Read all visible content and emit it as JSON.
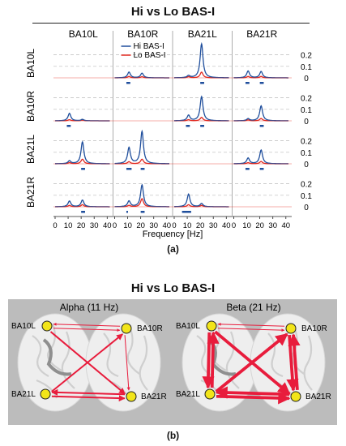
{
  "panel_a": {
    "title": "Hi vs Lo BAS-I",
    "caption": "(a)",
    "col_labels": [
      "BA10L",
      "BA10R",
      "BA21L",
      "BA21R"
    ],
    "row_labels": [
      "BA10L",
      "BA10R",
      "BA21L",
      "BA21R"
    ],
    "legend": [
      {
        "label": "Hi BAS-I",
        "color": "#1f4e9c"
      },
      {
        "label": "Lo BAS-I",
        "color": "#e0281f"
      }
    ]
  },
  "panel_b": {
    "title": "Hi vs Lo BAS-I",
    "caption": "(b)",
    "background_color": "#bcbcbc",
    "node_color": "#f2e51a",
    "arrow_color": "#e81c3c",
    "maps": [
      {
        "title": "Alpha (11 Hz)",
        "nodes": [
          "BA10L",
          "BA10R",
          "BA21L",
          "BA21R"
        ],
        "arrows": [
          {
            "from": "BA10L",
            "to": "BA10R",
            "strength": "thin"
          },
          {
            "from": "BA10R",
            "to": "BA10L",
            "strength": "thin"
          },
          {
            "from": "BA10L",
            "to": "BA21R",
            "strength": "medium"
          },
          {
            "from": "BA21L",
            "to": "BA10R",
            "strength": "medium"
          },
          {
            "from": "BA10R",
            "to": "BA21R",
            "strength": "thin"
          },
          {
            "from": "BA21L",
            "to": "BA21R",
            "strength": "medium"
          },
          {
            "from": "BA21R",
            "to": "BA21L",
            "strength": "medium"
          }
        ]
      },
      {
        "title": "Beta (21 Hz)",
        "nodes": [
          "BA10L",
          "BA10R",
          "BA21L",
          "BA21R"
        ],
        "arrows": [
          {
            "from": "BA10L",
            "to": "BA10R",
            "strength": "thin"
          },
          {
            "from": "BA10R",
            "to": "BA10L",
            "strength": "thin"
          },
          {
            "from": "BA10L",
            "to": "BA21L",
            "strength": "thick"
          },
          {
            "from": "BA21L",
            "to": "BA10L",
            "strength": "thick"
          },
          {
            "from": "BA10R",
            "to": "BA21R",
            "strength": "thick"
          },
          {
            "from": "BA21R",
            "to": "BA10R",
            "strength": "thick"
          },
          {
            "from": "BA10L",
            "to": "BA21R",
            "strength": "thick"
          },
          {
            "from": "BA21L",
            "to": "BA10R",
            "strength": "thick"
          },
          {
            "from": "BA21L",
            "to": "BA21R",
            "strength": "thick"
          },
          {
            "from": "BA21R",
            "to": "BA21L",
            "strength": "thick"
          }
        ]
      }
    ]
  },
  "chart_data": {
    "type": "line",
    "title": "Hi vs Lo BAS-I",
    "xlabel": "Frequency [Hz]",
    "xlim": [
      0,
      42
    ],
    "x_ticks": [
      0,
      10,
      20,
      30,
      40
    ],
    "x_tick_labels": [
      "0",
      "10",
      "20",
      "30",
      "40"
    ],
    "ylim": [
      0,
      0.3
    ],
    "y_ticks": [
      0,
      0.1,
      0.2
    ],
    "y_tick_labels": [
      "0",
      "0.1",
      "0.2"
    ],
    "grid": "dashed at 0.1 and 0.2",
    "legend_position": "top-right of row 1 / column 2",
    "legend": [
      "Hi BAS-I",
      "Lo BAS-I"
    ],
    "row_labels": [
      "BA10L",
      "BA10R",
      "BA21L",
      "BA21R"
    ],
    "col_labels": [
      "BA10L",
      "BA10R",
      "BA21L",
      "BA21R"
    ],
    "series_colors": {
      "Hi BAS-I": "#1f4e9c",
      "Lo BAS-I": "#e0281f"
    },
    "cells": [
      {
        "row": "BA10L",
        "col": "BA10L",
        "diagonal": true
      },
      {
        "row": "BA10L",
        "col": "BA10R",
        "hi": [
          [
            11,
            0.05
          ],
          [
            21,
            0.04
          ]
        ],
        "lo": [
          [
            11,
            0.012
          ],
          [
            21,
            0.01
          ]
        ],
        "bars": [
          [
            9,
            12
          ]
        ]
      },
      {
        "row": "BA10L",
        "col": "BA21L",
        "hi": [
          [
            11,
            0.018
          ],
          [
            21,
            0.295
          ]
        ],
        "lo": [
          [
            11,
            0.01
          ],
          [
            21,
            0.05
          ]
        ],
        "bars": [
          [
            20,
            23
          ]
        ]
      },
      {
        "row": "BA10L",
        "col": "BA21R",
        "hi": [
          [
            11,
            0.06
          ],
          [
            21,
            0.055
          ]
        ],
        "lo": [
          [
            11,
            0.012
          ],
          [
            21,
            0.012
          ]
        ],
        "bars": [
          [
            9,
            12
          ],
          [
            20,
            23
          ]
        ]
      },
      {
        "row": "BA10R",
        "col": "BA10L",
        "hi": [
          [
            11,
            0.065
          ],
          [
            21,
            0.012
          ]
        ],
        "lo": [
          [
            11,
            0.01
          ],
          [
            21,
            0.006
          ]
        ],
        "bars": [
          [
            9,
            12
          ]
        ]
      },
      {
        "row": "BA10R",
        "col": "BA10R",
        "diagonal": true
      },
      {
        "row": "BA10R",
        "col": "BA21L",
        "hi": [
          [
            11,
            0.048
          ],
          [
            21,
            0.21
          ]
        ],
        "lo": [
          [
            11,
            0.01
          ],
          [
            21,
            0.03
          ]
        ],
        "bars": [
          [
            9,
            12
          ],
          [
            20,
            23
          ]
        ]
      },
      {
        "row": "BA10R",
        "col": "BA21R",
        "hi": [
          [
            11,
            0.018
          ],
          [
            21,
            0.13
          ]
        ],
        "lo": [
          [
            11,
            0.008
          ],
          [
            21,
            0.02
          ]
        ],
        "bars": [
          [
            20,
            23
          ]
        ]
      },
      {
        "row": "BA21L",
        "col": "BA10L",
        "hi": [
          [
            11,
            0.025
          ],
          [
            21,
            0.19
          ]
        ],
        "lo": [
          [
            11,
            0.01
          ],
          [
            21,
            0.04
          ]
        ],
        "bars": [
          [
            20,
            23
          ]
        ]
      },
      {
        "row": "BA21L",
        "col": "BA10R",
        "hi": [
          [
            11,
            0.14
          ],
          [
            21,
            0.28
          ]
        ],
        "lo": [
          [
            11,
            0.018
          ],
          [
            21,
            0.04
          ]
        ],
        "bars": [
          [
            9,
            13
          ],
          [
            20,
            23
          ]
        ]
      },
      {
        "row": "BA21L",
        "col": "BA21L",
        "diagonal": true
      },
      {
        "row": "BA21L",
        "col": "BA21R",
        "hi": [
          [
            11,
            0.05
          ],
          [
            21,
            0.12
          ]
        ],
        "lo": [
          [
            11,
            0.01
          ],
          [
            21,
            0.02
          ]
        ],
        "bars": [
          [
            9,
            12
          ],
          [
            20,
            23
          ]
        ]
      },
      {
        "row": "BA21R",
        "col": "BA10L",
        "hi": [
          [
            11,
            0.05
          ],
          [
            21,
            0.058
          ]
        ],
        "lo": [
          [
            11,
            0.012
          ],
          [
            21,
            0.018
          ]
        ],
        "bars": [
          [
            20,
            23
          ]
        ]
      },
      {
        "row": "BA21R",
        "col": "BA10R",
        "hi": [
          [
            11,
            0.05
          ],
          [
            21,
            0.19
          ]
        ],
        "lo": [
          [
            11,
            0.012
          ],
          [
            21,
            0.07
          ]
        ],
        "bars": [
          [
            9,
            10
          ],
          [
            20,
            23
          ]
        ]
      },
      {
        "row": "BA21R",
        "col": "BA21L",
        "hi": [
          [
            11,
            0.11
          ],
          [
            21,
            0.028
          ]
        ],
        "lo": [
          [
            11,
            0.018
          ],
          [
            21,
            0.012
          ]
        ],
        "bars": [
          [
            6,
            13
          ]
        ]
      },
      {
        "row": "BA21R",
        "col": "BA21R",
        "diagonal": true
      }
    ]
  }
}
